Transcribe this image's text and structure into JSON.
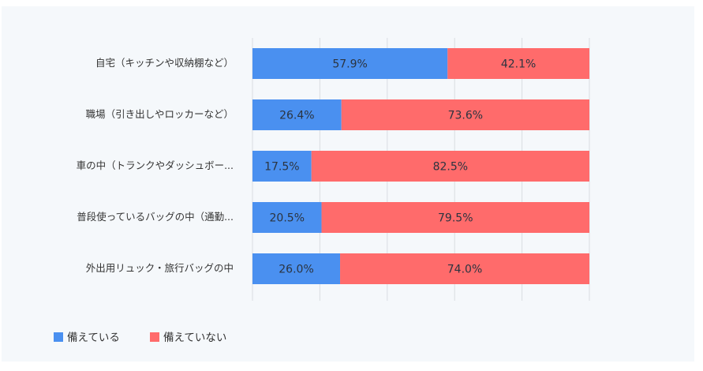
{
  "chart_data": {
    "type": "bar",
    "orientation": "horizontal",
    "stacked": true,
    "percent": true,
    "categories": [
      "自宅（キッチンや収納棚など）",
      "職場（引き出しやロッカーなど）",
      "車の中（トランクやダッシュボー...",
      "普段使っているバッグの中（通勤...",
      "外出用リュック・旅行バッグの中"
    ],
    "series": [
      {
        "name": "備えている",
        "color": "#4a90f0",
        "values": [
          57.9,
          26.4,
          17.5,
          20.5,
          26.0
        ],
        "labels": [
          "57.9%",
          "26.4%",
          "17.5%",
          "20.5%",
          "26.0%"
        ]
      },
      {
        "name": "備えていない",
        "color": "#ff6b6b",
        "values": [
          42.1,
          73.6,
          82.5,
          79.5,
          74.0
        ],
        "labels": [
          "42.1%",
          "73.6%",
          "82.5%",
          "79.5%",
          "74.0%"
        ]
      }
    ],
    "xlim": [
      0,
      100
    ],
    "grid": true,
    "legend_position": "bottom-left"
  }
}
